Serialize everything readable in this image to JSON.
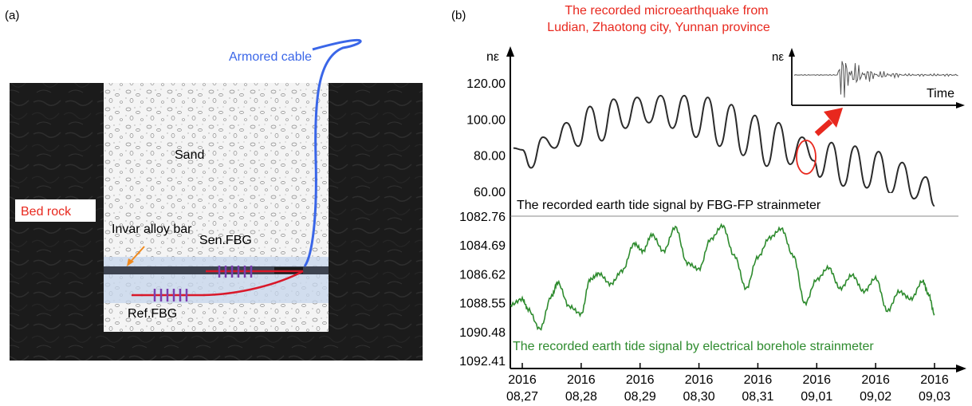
{
  "panel_a": {
    "label": "(a)",
    "armored_cable": "Armored cable",
    "sand": "Sand",
    "bed_rock": "Bed rock",
    "invar": "Invar alloy bar",
    "sen_fbg": "Sen.FBG",
    "ref_fbg": "Ref.FBG",
    "colors": {
      "cable": "#3a66e8",
      "fiber": "#d9182a",
      "grating": "#7a3fb0",
      "label_red": "#e8281e"
    }
  },
  "panel_b": {
    "label": "(b)",
    "quake_line1": "The recorded microearthquake from",
    "quake_line2": "Ludian, Zhaotong city, Yunnan province",
    "unit": "nε",
    "inset_time": "Time",
    "fbg_caption": "The recorded earth tide signal by FBG-FP strainmeter",
    "elec_caption": "The recorded earth tide signal by electrical borehole strainmeter",
    "colors": {
      "fbg": "#2b2b2b",
      "elec": "#2e8b2e",
      "annot": "#e8281e"
    }
  },
  "chart_data": [
    {
      "type": "line",
      "name": "fbg",
      "yticks": [
        "120.00",
        "100.00",
        "80.00",
        "60.00"
      ],
      "ylim": [
        50,
        132
      ],
      "x_tick_labels": [
        [
          "2016",
          "08,27"
        ],
        [
          "2016",
          "08,28"
        ],
        [
          "2016",
          "08,29"
        ],
        [
          "2016",
          "08,30"
        ],
        [
          "2016",
          "08,31"
        ],
        [
          "2016",
          "09,01"
        ],
        [
          "2016",
          "09,02"
        ],
        [
          "2016",
          "09,03"
        ]
      ],
      "xlim": [
        -0.2,
        7.3
      ],
      "x": [
        -0.15,
        0.0,
        0.15,
        0.35,
        0.55,
        0.75,
        0.95,
        1.15,
        1.35,
        1.55,
        1.75,
        1.95,
        2.15,
        2.35,
        2.55,
        2.75,
        2.95,
        3.15,
        3.35,
        3.55,
        3.75,
        3.95,
        4.15,
        4.35,
        4.55,
        4.75,
        4.95,
        5.05,
        5.25,
        5.45,
        5.65,
        5.85,
        6.05,
        6.25,
        6.45,
        6.65,
        6.85,
        7.0
      ],
      "y": [
        84,
        83,
        73,
        90,
        84,
        98,
        85,
        107,
        88,
        111,
        95,
        112,
        98,
        113,
        95,
        113,
        90,
        112,
        85,
        108,
        80,
        102,
        74,
        98,
        75,
        90,
        77,
        68,
        87,
        63,
        85,
        62,
        82,
        59,
        76,
        56,
        68,
        52
      ]
    },
    {
      "type": "line",
      "name": "electrical",
      "yticks": [
        "1082.76",
        "1084.69",
        "1086.62",
        "1088.55",
        "1090.48",
        "1092.41"
      ],
      "ylim": [
        1082.76,
        1092.41
      ],
      "y_inverted": true,
      "xlim": [
        -0.2,
        7.3
      ],
      "x": [
        -0.2,
        0.0,
        0.1,
        0.3,
        0.5,
        0.6,
        0.8,
        1.0,
        1.15,
        1.3,
        1.5,
        1.7,
        1.9,
        2.05,
        2.2,
        2.4,
        2.6,
        2.8,
        3.0,
        3.2,
        3.4,
        3.6,
        3.8,
        4.0,
        4.2,
        4.4,
        4.6,
        4.8,
        5.0,
        5.2,
        5.4,
        5.6,
        5.8,
        6.0,
        6.2,
        6.4,
        6.6,
        6.8,
        6.9,
        7.0
      ],
      "y": [
        1088.7,
        1088.3,
        1089.0,
        1090.3,
        1088.1,
        1087.2,
        1088.8,
        1089.3,
        1087.0,
        1086.6,
        1087.3,
        1086.4,
        1084.6,
        1085.1,
        1084.0,
        1085.1,
        1083.5,
        1085.9,
        1086.3,
        1084.3,
        1083.4,
        1085.4,
        1087.6,
        1085.5,
        1084.2,
        1083.6,
        1085.4,
        1088.6,
        1087.0,
        1086.2,
        1087.6,
        1086.7,
        1087.8,
        1086.9,
        1089.1,
        1087.8,
        1088.3,
        1087.1,
        1088.0,
        1089.3
      ]
    }
  ]
}
